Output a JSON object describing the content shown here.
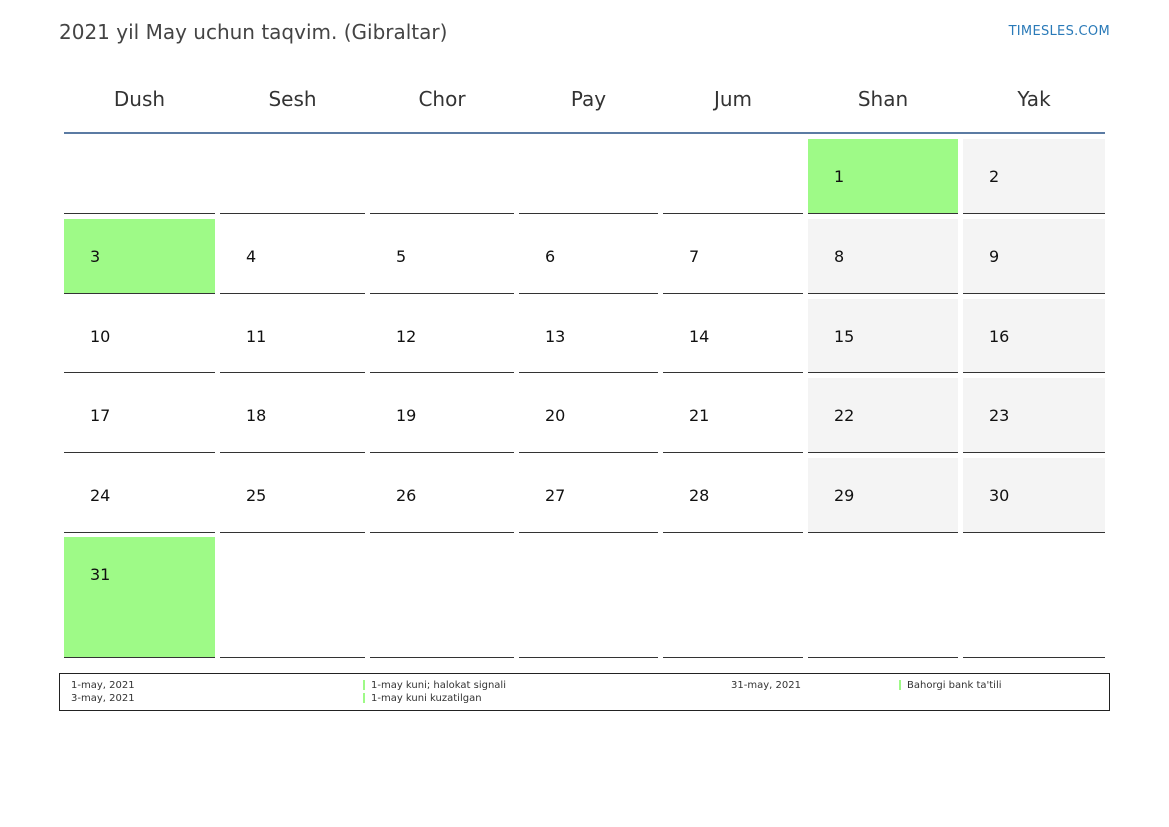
{
  "header": {
    "title": "2021 yil May uchun taqvim. (Gibraltar)",
    "site": "TIMESLES.COM"
  },
  "weekdays": [
    "Dush",
    "Sesh",
    "Chor",
    "Pay",
    "Jum",
    "Shan",
    "Yak"
  ],
  "days": {
    "d1": "1",
    "d2": "2",
    "d3": "3",
    "d4": "4",
    "d5": "5",
    "d6": "6",
    "d7": "7",
    "d8": "8",
    "d9": "9",
    "d10": "10",
    "d11": "11",
    "d12": "12",
    "d13": "13",
    "d14": "14",
    "d15": "15",
    "d16": "16",
    "d17": "17",
    "d18": "18",
    "d19": "19",
    "d20": "20",
    "d21": "21",
    "d22": "22",
    "d23": "23",
    "d24": "24",
    "d25": "25",
    "d26": "26",
    "d27": "27",
    "d28": "28",
    "d29": "29",
    "d30": "30",
    "d31": "31"
  },
  "legend": {
    "entries": [
      {
        "date": "1-may, 2021",
        "name": "1-may kuni; halokat signali"
      },
      {
        "date": "3-may, 2021",
        "name": "1-may kuni kuzatilgan"
      },
      {
        "date": "31-may, 2021",
        "name": "Bahorgi bank ta'tili"
      }
    ]
  },
  "colors": {
    "holiday": "#9efa87",
    "weekend": "#f4f4f4",
    "header_rule": "#5b7ba3",
    "link": "#2a7ab8"
  }
}
